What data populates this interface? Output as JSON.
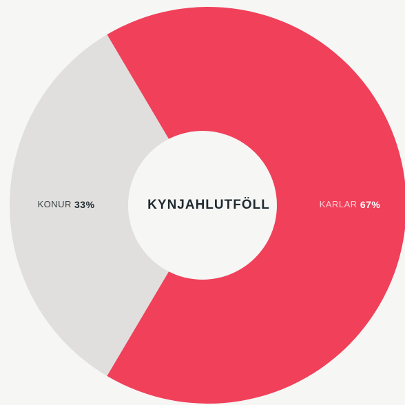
{
  "chart_data": {
    "type": "donut",
    "title": "KYNJAHLUTFÖLL",
    "categories": [
      "KONUR",
      "KARLAR"
    ],
    "values": [
      33,
      67
    ],
    "value_labels": [
      "33%",
      "67%"
    ],
    "colors": [
      "#e0dfdd",
      "#f0405a"
    ]
  }
}
